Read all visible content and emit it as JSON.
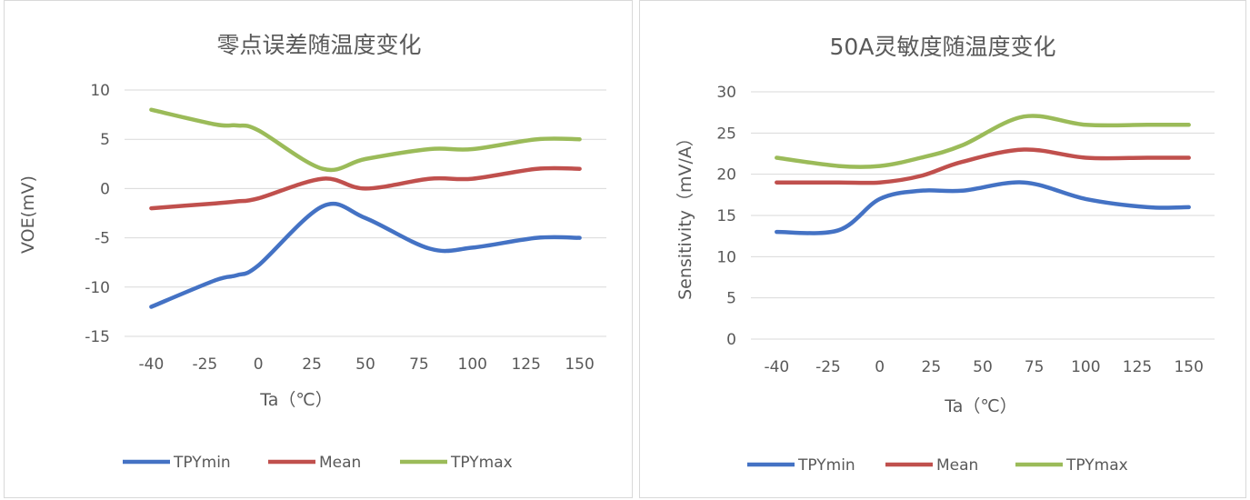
{
  "colors": {
    "TPYmin": "#4472c4",
    "Mean": "#c0504d",
    "TPYmax": "#9bbb59",
    "grid": "#d9d9d9",
    "text": "#595959"
  },
  "chart_data": [
    {
      "type": "line",
      "title": "零点误差随温度变化",
      "xlabel": "Ta（℃）",
      "ylabel": "VOE(mV)",
      "categories": [
        "-40",
        "-25",
        "0",
        "25",
        "50",
        "75",
        "100",
        "125",
        "150"
      ],
      "x_values": [
        -40,
        -25,
        0,
        25,
        50,
        75,
        100,
        125,
        150
      ],
      "ylim": [
        -15,
        10
      ],
      "yticks": [
        -15,
        -10,
        -5,
        0,
        5,
        10
      ],
      "grid": true,
      "legend": "bottom",
      "smooth": true,
      "series": [
        {
          "name": "TPYmin",
          "x": [
            -40,
            -20,
            -10,
            0,
            30,
            50,
            80,
            100,
            130,
            150
          ],
          "values": [
            -12,
            -9.3,
            -8.8,
            -7.8,
            -1.8,
            -3,
            -6.1,
            -6,
            -5,
            -5
          ]
        },
        {
          "name": "Mean",
          "x": [
            -40,
            -20,
            -10,
            0,
            30,
            50,
            80,
            100,
            130,
            150
          ],
          "values": [
            -2,
            -1.5,
            -1.3,
            -1,
            1,
            0,
            1,
            1,
            2,
            2
          ]
        },
        {
          "name": "TPYmax",
          "x": [
            -40,
            -20,
            -10,
            0,
            30,
            50,
            80,
            100,
            130,
            150
          ],
          "values": [
            8,
            6.5,
            6.4,
            5.9,
            2,
            3,
            4,
            4,
            5,
            5
          ]
        }
      ]
    },
    {
      "type": "line",
      "title": "50A灵敏度随温度变化",
      "xlabel": "Ta（℃）",
      "ylabel": "Sensitivity（mV/A）",
      "categories": [
        "-40",
        "-25",
        "0",
        "25",
        "50",
        "75",
        "100",
        "125",
        "150"
      ],
      "x_values": [
        -40,
        -25,
        0,
        25,
        50,
        75,
        100,
        125,
        150
      ],
      "ylim": [
        0,
        30
      ],
      "yticks": [
        0,
        5,
        10,
        15,
        20,
        25,
        30
      ],
      "grid": true,
      "legend": "bottom",
      "smooth": true,
      "series": [
        {
          "name": "TPYmin",
          "x": [
            -40,
            -20,
            0,
            20,
            40,
            70,
            100,
            130,
            150
          ],
          "values": [
            13,
            13.2,
            17,
            18,
            18,
            19,
            17,
            16,
            16
          ]
        },
        {
          "name": "Mean",
          "x": [
            -40,
            -20,
            0,
            20,
            40,
            70,
            100,
            130,
            150
          ],
          "values": [
            19,
            19,
            19,
            19.8,
            21.5,
            23,
            22,
            22,
            22
          ]
        },
        {
          "name": "TPYmax",
          "x": [
            -40,
            -20,
            0,
            20,
            40,
            70,
            100,
            130,
            150
          ],
          "values": [
            22,
            21,
            21,
            22,
            23.5,
            27,
            26,
            26,
            26
          ]
        }
      ]
    }
  ]
}
